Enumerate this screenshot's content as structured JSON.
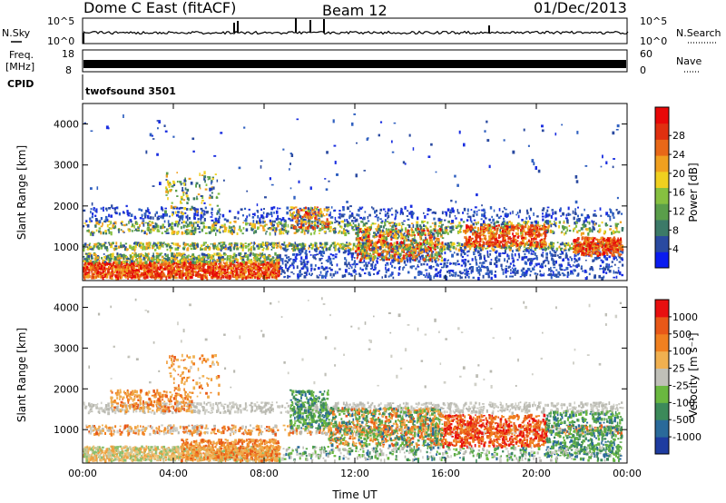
{
  "header": {
    "station": "Dome C East (fitACF)",
    "beam": "Beam 12",
    "date": "01/Dec/2013"
  },
  "top_panels": {
    "noise_left_label": "N.Sky",
    "noise_right_label": "N.Search",
    "noise_left_ticks": [
      "10^5",
      "10^0"
    ],
    "noise_right_ticks": [
      "10^5",
      "10^0"
    ],
    "freq_label_line1": "Freq.",
    "freq_label_line2": "[MHz]",
    "freq_ticks": [
      "18",
      "8"
    ],
    "nave_label": "Nave",
    "nave_ticks": [
      "60",
      "0"
    ],
    "cpid_label": "CPID",
    "cpid_value": "twofsound 3501"
  },
  "chart_data": [
    {
      "type": "heatmap",
      "name": "power",
      "ylabel": "Slant Range [km]",
      "xlabel": "",
      "ylim": [
        180,
        4500
      ],
      "yticks": [
        "1000",
        "2000",
        "3000",
        "4000"
      ],
      "colorbar_label": "Power [dB]",
      "colorbar_ticks": [
        "4",
        "8",
        "12",
        "16",
        "20",
        "24",
        "28"
      ],
      "colorbar_colors": [
        "#0a1cf0",
        "#2a4aa0",
        "#3c7a68",
        "#5a9e4a",
        "#86c040",
        "#f0d020",
        "#f0a020",
        "#e86818",
        "#e03010",
        "#e80808"
      ]
    },
    {
      "type": "heatmap",
      "name": "velocity",
      "ylabel": "Slant Range [km]",
      "xlabel": "Time UT",
      "ylim": [
        180,
        4500
      ],
      "yticks": [
        "1000",
        "2000",
        "3000",
        "4000"
      ],
      "xticks": [
        "00:00",
        "04:00",
        "08:00",
        "12:00",
        "16:00",
        "20:00",
        "00:00"
      ],
      "colorbar_label": "Velocity [m s⁻¹]",
      "colorbar_ticks": [
        "1000",
        "500",
        "100",
        "25",
        "-25",
        "-100",
        "-500",
        "-1000"
      ],
      "colorbar_colors": [
        "#1e3ca0",
        "#2a6a9a",
        "#3c8a5a",
        "#6ab840",
        "#c0c0b8",
        "#f0b050",
        "#f08020",
        "#e85818",
        "#e81010"
      ]
    }
  ]
}
